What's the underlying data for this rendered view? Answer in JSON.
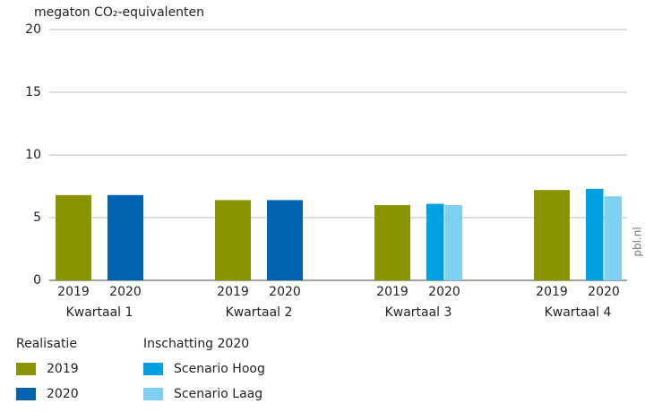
{
  "chart_data": {
    "type": "bar",
    "ylabel": "megaton CO₂-equivalenten",
    "categories": [
      "Kwartaal 1",
      "Kwartaal 2",
      "Kwartaal 3",
      "Kwartaal 4"
    ],
    "sublabels": [
      "2019",
      "2020"
    ],
    "series": [
      {
        "name": "2019",
        "color": "#8a9400",
        "values": [
          6.8,
          6.4,
          6.0,
          7.2
        ]
      },
      {
        "name": "2020",
        "color": "#0063b0",
        "values": [
          6.8,
          6.4,
          null,
          null
        ]
      },
      {
        "name": "Scenario Hoog",
        "color": "#00a0e3",
        "values": [
          null,
          null,
          6.1,
          7.3
        ]
      },
      {
        "name": "Scenario Laag",
        "color": "#7fcff3",
        "values": [
          null,
          null,
          6.0,
          6.7
        ]
      }
    ],
    "legend_titles": [
      "Realisatie",
      "Inschatting 2020"
    ],
    "source": "pbl.nl",
    "ylim": [
      0,
      20
    ],
    "yticks": [
      0,
      5,
      10,
      15,
      20
    ],
    "grid": true
  }
}
